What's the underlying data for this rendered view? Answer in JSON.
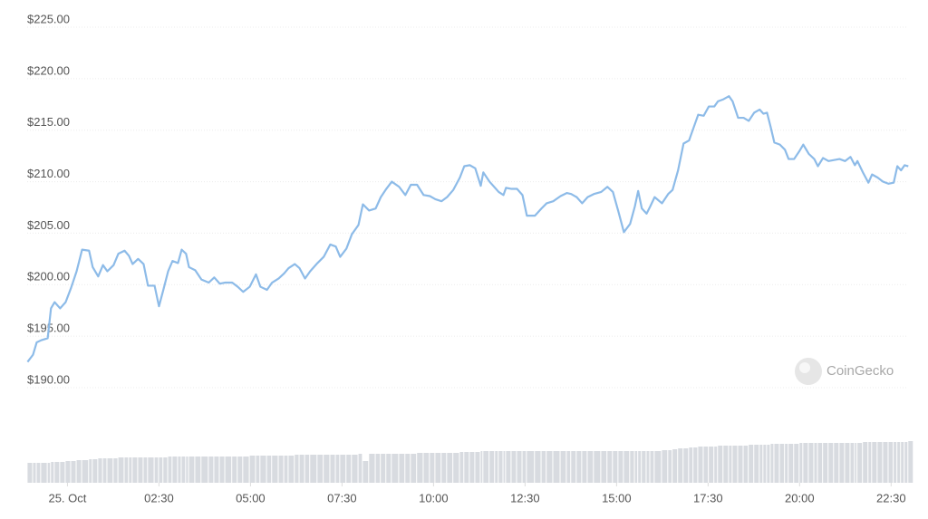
{
  "chart_data": {
    "type": "line",
    "x": [
      -1.09,
      -0.94,
      -0.84,
      -0.72,
      -0.54,
      -0.45,
      -0.35,
      -0.2,
      -0.05,
      0.1,
      0.25,
      0.4,
      0.59,
      0.69,
      0.84,
      0.97,
      1.09,
      1.26,
      1.39,
      1.56,
      1.68,
      1.78,
      1.93,
      2.08,
      2.2,
      2.38,
      2.5,
      2.62,
      2.75,
      2.87,
      3.02,
      3.12,
      3.24,
      3.32,
      3.49,
      3.66,
      3.86,
      4.01,
      4.16,
      4.31,
      4.5,
      4.65,
      4.8,
      4.98,
      5.15,
      5.27,
      5.45,
      5.59,
      5.77,
      5.92,
      6.04,
      6.21,
      6.34,
      6.49,
      6.63,
      6.83,
      7.0,
      7.18,
      7.33,
      7.45,
      7.62,
      7.77,
      7.95,
      8.07,
      8.24,
      8.42,
      8.56,
      8.71,
      8.86,
      9.06,
      9.23,
      9.38,
      9.55,
      9.73,
      9.9,
      10.05,
      10.22,
      10.37,
      10.54,
      10.72,
      10.84,
      10.99,
      11.14,
      11.29,
      11.36,
      11.53,
      11.68,
      11.78,
      11.91,
      11.98,
      12.13,
      12.28,
      12.43,
      12.55,
      12.77,
      12.95,
      13.09,
      13.27,
      13.47,
      13.64,
      13.76,
      13.91,
      14.06,
      14.21,
      14.38,
      14.58,
      14.75,
      14.9,
      15.05,
      15.2,
      15.37,
      15.5,
      15.59,
      15.69,
      15.82,
      15.92,
      16.04,
      16.24,
      16.41,
      16.53,
      16.68,
      16.83,
      16.98,
      17.1,
      17.23,
      17.38,
      17.52,
      17.67,
      17.77,
      17.92,
      18.07,
      18.17,
      18.32,
      18.47,
      18.61,
      18.76,
      18.91,
      19.01,
      19.11,
      19.21,
      19.31,
      19.46,
      19.6,
      19.7,
      19.85,
      20.0,
      20.1,
      20.25,
      20.4,
      20.5,
      20.64,
      20.79,
      20.94,
      21.09,
      21.24,
      21.39,
      21.51,
      21.58,
      21.73,
      21.88,
      21.98,
      22.13,
      22.28,
      22.43,
      22.57,
      22.67,
      22.77,
      22.87,
      22.97
    ],
    "series": [
      {
        "color": "#8dbbe8",
        "values": [
          192.5,
          193.2,
          194.4,
          194.6,
          194.8,
          197.7,
          198.3,
          197.7,
          198.3,
          199.7,
          201.3,
          203.4,
          203.3,
          201.7,
          200.8,
          201.9,
          201.3,
          201.9,
          203.0,
          203.3,
          202.8,
          202.0,
          202.5,
          202.0,
          199.9,
          199.9,
          197.9,
          199.5,
          201.3,
          202.3,
          202.1,
          203.4,
          203.0,
          201.7,
          201.4,
          200.5,
          200.2,
          200.7,
          200.1,
          200.2,
          200.2,
          199.8,
          199.3,
          199.8,
          201.0,
          199.8,
          199.5,
          200.2,
          200.6,
          201.1,
          201.6,
          202.0,
          201.6,
          200.6,
          201.3,
          202.1,
          202.7,
          203.9,
          203.7,
          202.7,
          203.5,
          204.9,
          205.8,
          207.8,
          207.2,
          207.4,
          208.5,
          209.3,
          210.0,
          209.5,
          208.7,
          209.7,
          209.7,
          208.7,
          208.6,
          208.3,
          208.1,
          208.5,
          209.2,
          210.4,
          211.5,
          211.6,
          211.3,
          209.6,
          210.9,
          210.0,
          209.4,
          209.0,
          208.7,
          209.4,
          209.3,
          209.3,
          208.7,
          206.7,
          206.7,
          207.4,
          207.9,
          208.1,
          208.6,
          208.9,
          208.8,
          208.5,
          207.9,
          208.5,
          208.8,
          209.0,
          209.5,
          209.0,
          207.1,
          205.1,
          205.9,
          207.6,
          209.1,
          207.4,
          206.9,
          207.6,
          208.5,
          207.9,
          208.8,
          209.2,
          211.1,
          213.7,
          214.0,
          215.2,
          216.5,
          216.4,
          217.3,
          217.3,
          217.8,
          218.0,
          218.3,
          217.8,
          216.2,
          216.2,
          215.9,
          216.7,
          217.0,
          216.6,
          216.7,
          215.3,
          213.8,
          213.6,
          213.1,
          212.2,
          212.2,
          213.0,
          213.6,
          212.7,
          212.2,
          211.5,
          212.3,
          212.0,
          212.1,
          212.2,
          212.0,
          212.4,
          211.6,
          212.0,
          210.9,
          209.9,
          210.7,
          210.4,
          210.0,
          209.8,
          209.9,
          211.5,
          211.1,
          211.6,
          211.5
        ]
      },
      {
        "color": "#d8dbe0",
        "axis": "y2",
        "values": [
          22,
          22,
          22,
          22,
          22,
          23,
          23,
          23,
          24,
          24,
          25,
          25,
          26,
          26,
          27,
          27,
          27,
          27,
          28,
          28,
          28,
          28,
          28,
          28,
          28,
          28,
          28,
          28,
          29,
          29,
          29,
          29,
          29,
          29,
          29,
          29,
          29,
          29,
          29,
          29,
          29,
          29,
          29,
          30,
          30,
          30,
          30,
          30,
          30,
          30,
          30,
          31,
          31,
          31,
          31,
          31,
          31,
          31,
          31,
          31,
          31,
          31,
          32,
          24,
          32,
          32,
          32,
          32,
          32,
          32,
          32,
          32,
          33,
          33,
          33,
          33,
          33,
          33,
          33,
          34,
          34,
          34,
          34,
          35,
          35,
          35,
          35,
          35,
          35,
          35,
          35,
          35,
          35,
          35,
          35,
          35,
          35,
          35,
          35,
          35,
          35,
          35,
          35,
          35,
          35,
          35,
          35,
          35,
          35,
          35,
          35,
          35,
          35,
          35,
          35,
          35,
          35,
          36,
          36,
          37,
          38,
          38,
          39,
          39,
          40,
          40,
          40,
          40,
          41,
          41,
          41,
          41,
          41,
          41,
          42,
          42,
          42,
          42,
          42,
          43,
          43,
          43,
          43,
          43,
          43,
          44,
          44,
          44,
          44,
          44,
          44,
          44,
          44,
          44,
          44,
          44,
          44,
          44,
          45,
          45,
          45,
          45,
          45,
          45,
          45,
          45,
          45,
          45,
          46
        ]
      }
    ],
    "xlim": [
      -1.1,
      23.0
    ],
    "xticks": [
      {
        "value": 0,
        "label": "25. Oct"
      },
      {
        "value": 2.5,
        "label": "02:30"
      },
      {
        "value": 5,
        "label": "05:00"
      },
      {
        "value": 7.5,
        "label": "07:30"
      },
      {
        "value": 10,
        "label": "10:00"
      },
      {
        "value": 12.5,
        "label": "12:30"
      },
      {
        "value": 15,
        "label": "15:00"
      },
      {
        "value": 17.5,
        "label": "17:30"
      },
      {
        "value": 20,
        "label": "20:00"
      },
      {
        "value": 22.5,
        "label": "22:30"
      }
    ],
    "ylim": [
      190,
      225
    ],
    "yticks": [
      {
        "value": 190,
        "label": "$190.00"
      },
      {
        "value": 195,
        "label": "$195.00"
      },
      {
        "value": 200,
        "label": "$200.00"
      },
      {
        "value": 205,
        "label": "$205.00"
      },
      {
        "value": 210,
        "label": "$210.00"
      },
      {
        "value": 215,
        "label": "$215.00"
      },
      {
        "value": 220,
        "label": "$220.00"
      },
      {
        "value": 225,
        "label": "$225.00"
      }
    ],
    "y2lim": [
      0,
      100
    ],
    "grid": true,
    "watermark": "CoinGecko"
  }
}
